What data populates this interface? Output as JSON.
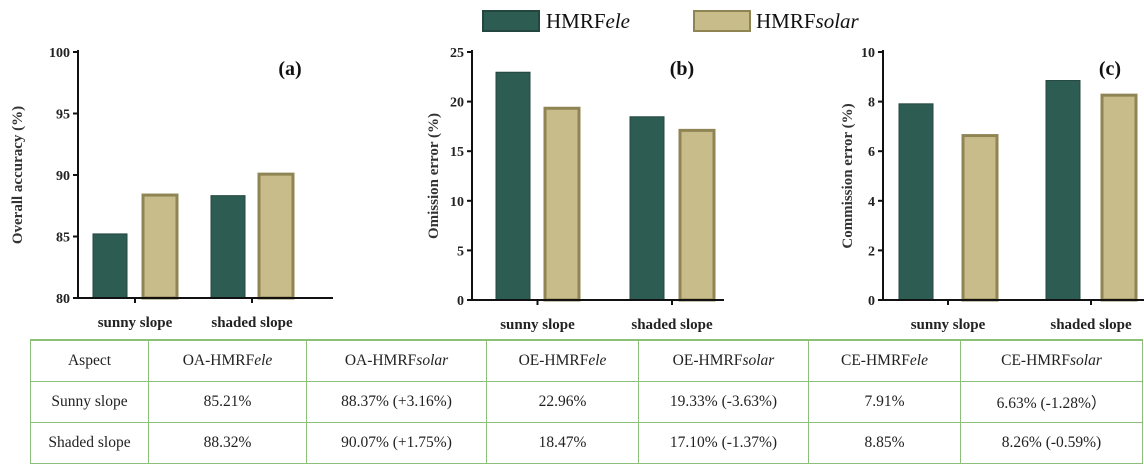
{
  "colors": {
    "ele": "#2d5c53",
    "solar": "#c8bd8a",
    "solar_border": "#8f8453",
    "ele_border": "#23463f",
    "grid_border": "#8cc079"
  },
  "legend": [
    {
      "prefix": "HMRF",
      "suffix": "ele",
      "color": "#2d5c53"
    },
    {
      "prefix": "HMRF",
      "suffix": "solar",
      "color": "#c8bd8a"
    }
  ],
  "chart_data": [
    {
      "type": "bar",
      "panel": "(a)",
      "ylabel": "Overall accuracy (%)",
      "ylim": [
        80,
        100
      ],
      "yticks": [
        80,
        85,
        90,
        95,
        100
      ],
      "categories": [
        "sunny slope",
        "shaded slope"
      ],
      "series": [
        {
          "name": "HMRFele",
          "values": [
            85.21,
            88.32
          ]
        },
        {
          "name": "HMRFsolar",
          "values": [
            88.37,
            90.07
          ]
        }
      ]
    },
    {
      "type": "bar",
      "panel": "(b)",
      "ylabel": "Omission error (%)",
      "ylim": [
        0,
        25
      ],
      "yticks": [
        0,
        5,
        10,
        15,
        20,
        25
      ],
      "categories": [
        "sunny slope",
        "shaded slope"
      ],
      "series": [
        {
          "name": "HMRFele",
          "values": [
            22.96,
            18.47
          ]
        },
        {
          "name": "HMRFsolar",
          "values": [
            19.33,
            17.1
          ]
        }
      ]
    },
    {
      "type": "bar",
      "panel": "(c)",
      "ylabel": "Commission error (%)",
      "ylim": [
        0,
        10
      ],
      "yticks": [
        0,
        2,
        4,
        6,
        8,
        10
      ],
      "categories": [
        "sunny slope",
        "shaded slope"
      ],
      "series": [
        {
          "name": "HMRFele",
          "values": [
            7.91,
            8.85
          ]
        },
        {
          "name": "HMRFsolar",
          "values": [
            6.63,
            8.26
          ]
        }
      ]
    }
  ],
  "table": {
    "headers": [
      {
        "main": "Aspect",
        "em": ""
      },
      {
        "main": "OA-HMRF",
        "em": "ele"
      },
      {
        "main": "OA-HMRF",
        "em": "solar"
      },
      {
        "main": "OE-HMRF",
        "em": "ele"
      },
      {
        "main": "OE-HMRF",
        "em": "solar"
      },
      {
        "main": "CE-HMRF",
        "em": "ele"
      },
      {
        "main": "CE-HMRF",
        "em": "solar"
      }
    ],
    "rows": [
      [
        "Sunny slope",
        "85.21%",
        "88.37% (+3.16%)",
        "22.96%",
        "19.33% (-3.63%)",
        "7.91%",
        "6.63% (-1.28%）"
      ],
      [
        "Shaded slope",
        "88.32%",
        "90.07% (+1.75%)",
        "18.47%",
        "17.10% (-1.37%)",
        "8.85%",
        "8.26% (-0.59%)"
      ]
    ]
  }
}
